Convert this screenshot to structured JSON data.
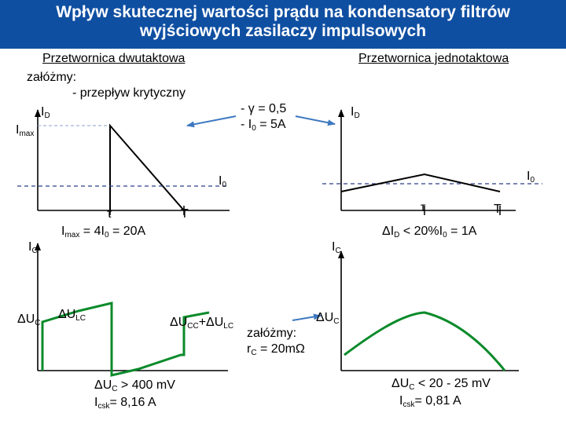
{
  "title": {
    "line1": "Wpływ skutecznej wartości prądu na kondensatory filtrów",
    "line2": "wyjściowych zasilaczy impulsowych"
  },
  "left": {
    "heading": "Przetwornica dwutaktowa",
    "assume": "załóżmy:",
    "note": "- przepływ krytyczny",
    "id": {
      "main": "I",
      "sub": "D"
    },
    "imax": {
      "main": "I",
      "sub": "max"
    },
    "i0": {
      "main": "I",
      "sub": "0"
    },
    "tau": "τ",
    "period": "T",
    "imax_eq": {
      "a": "I",
      "b": "max",
      "c": " = 4I",
      "d": "0",
      "e": " = 20A"
    },
    "ic": {
      "main": "I",
      "sub": "C"
    },
    "duc": {
      "main": "ΔU",
      "sub": "C"
    },
    "dulc": {
      "main": "ΔU",
      "sub": "LC"
    },
    "sum": {
      "a": "ΔU",
      "b": "CC",
      "c": "+ΔU",
      "d": "LC"
    },
    "result": {
      "a": "ΔU",
      "b": "C",
      "c": " > 400 mV"
    },
    "icsk": {
      "a": "I",
      "b": "csk",
      "c": "= 8,16 A"
    }
  },
  "middle": {
    "gamma": "- γ = 0,5",
    "i0eq": {
      "a": "- I",
      "b": "0",
      "c": " = 5A"
    },
    "assume": "załóżmy:",
    "rc": {
      "a": "r",
      "b": "C",
      "c": " = 20mΩ"
    }
  },
  "right": {
    "heading": "Przetwornica jednotaktowa",
    "id": {
      "main": "I",
      "sub": "D"
    },
    "i0": {
      "main": "I",
      "sub": "0"
    },
    "tau": "τ",
    "period": "T",
    "did": {
      "a": "ΔI",
      "b": "D",
      "c": " < 20%I",
      "d": "0",
      "e": " = 1A"
    },
    "ic": {
      "main": "I",
      "sub": "C"
    },
    "duc": {
      "main": "ΔU",
      "sub": "C"
    },
    "result": {
      "a": "ΔU",
      "b": "C",
      "c": " < 20 - 25 mV"
    },
    "icsk": {
      "a": "I",
      "b": "csk",
      "c": "= 0,81 A"
    }
  },
  "colors": {
    "banner": "#0f4fa2",
    "curve": "#0a8a2a",
    "arrow": "#3d78c0",
    "dashed": "#2a3f8c"
  }
}
